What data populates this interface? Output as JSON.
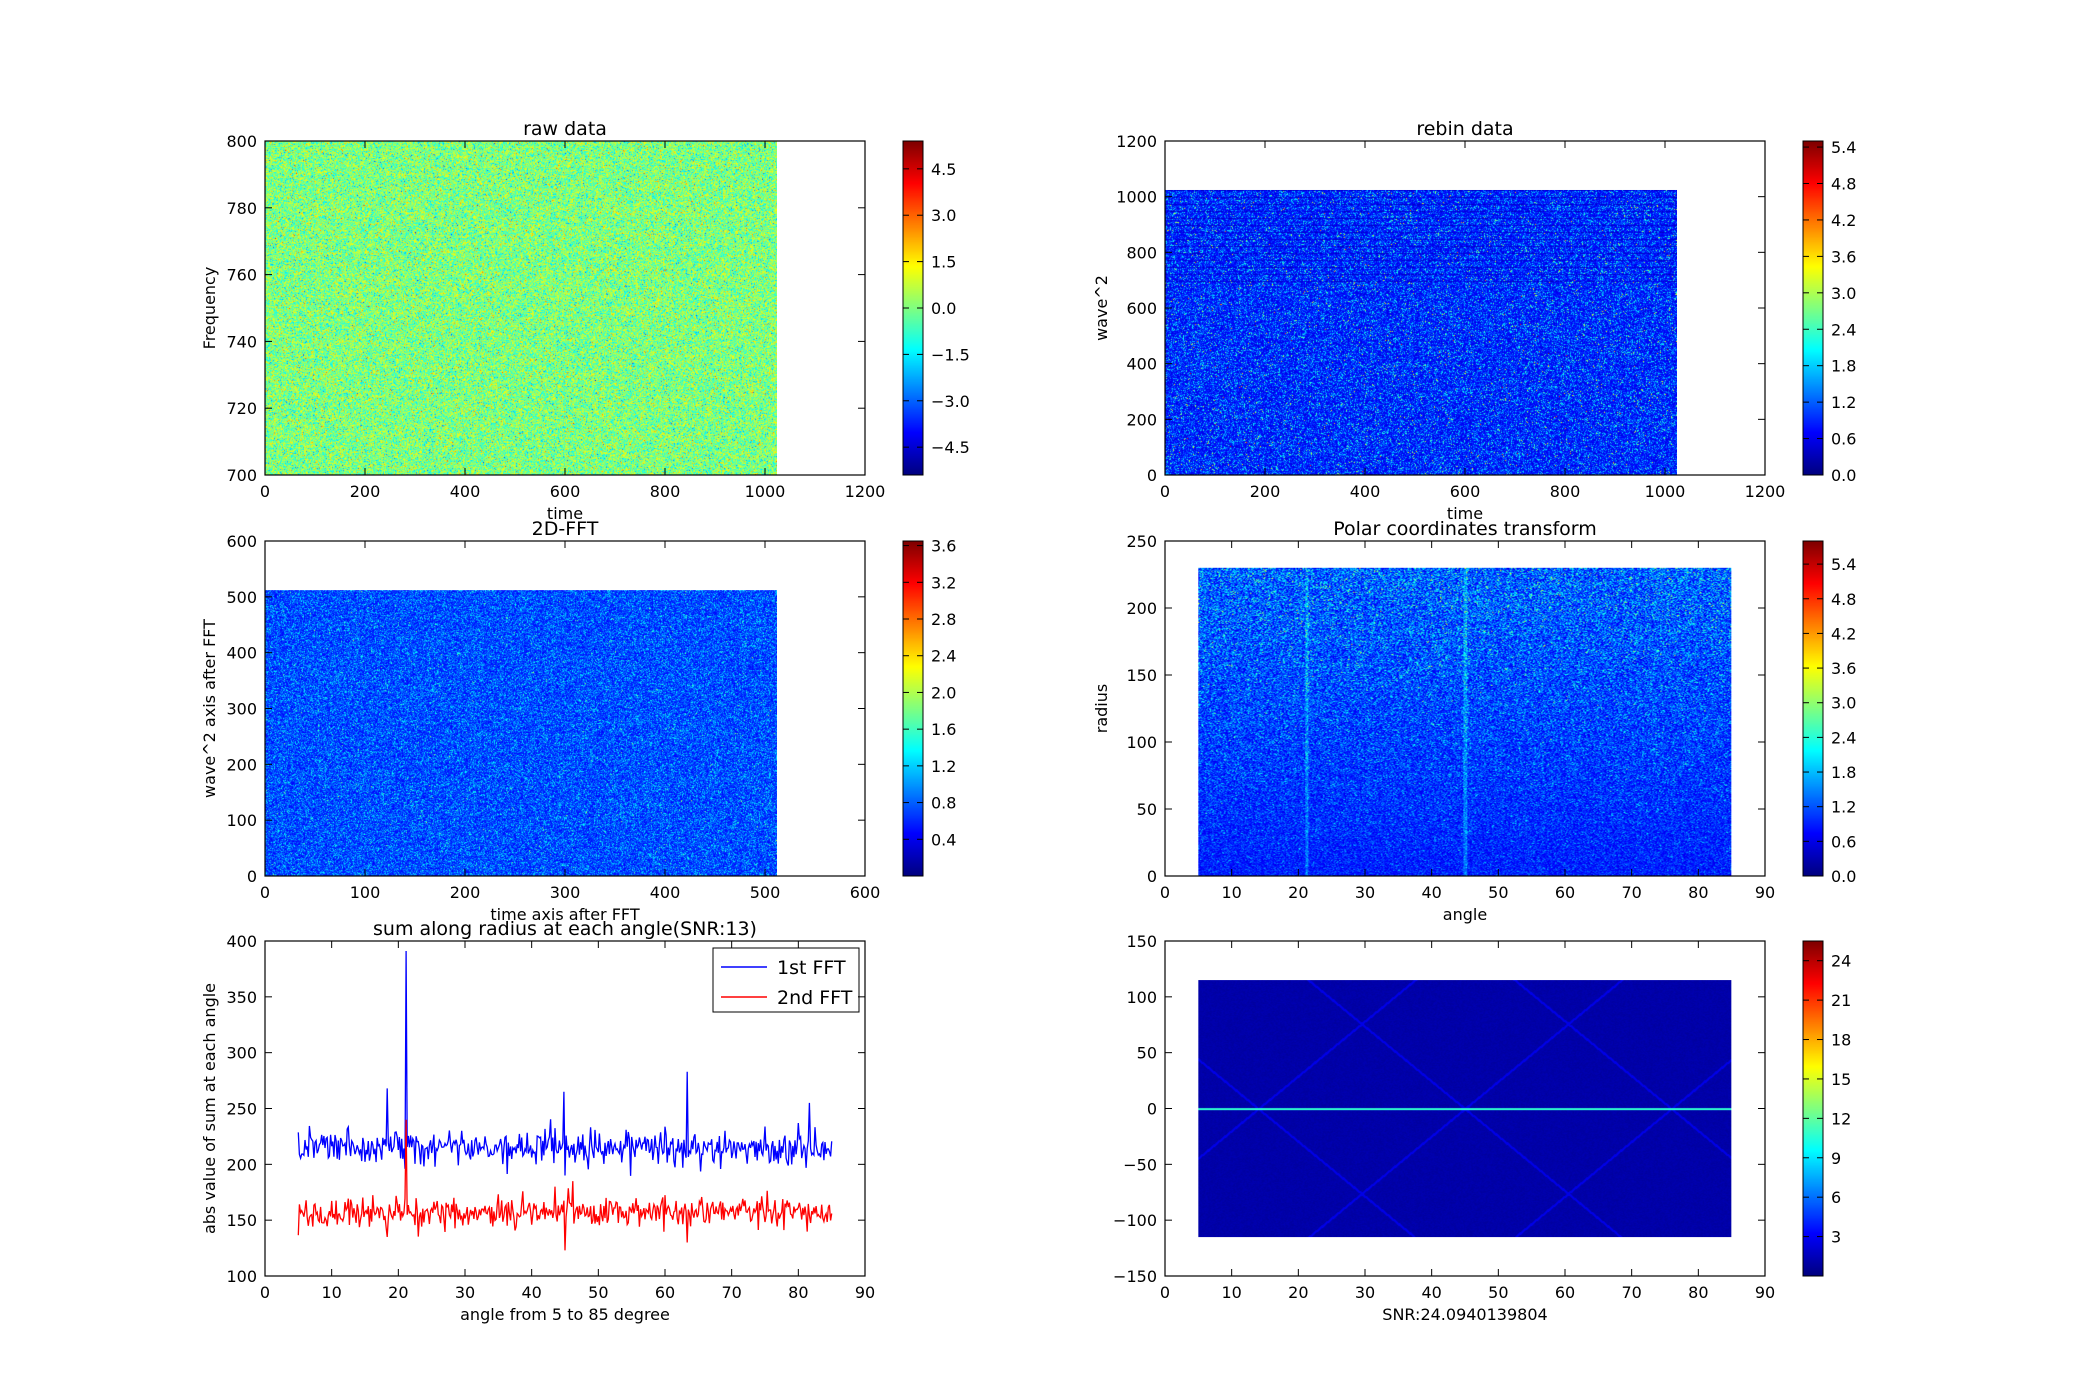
{
  "chart_data": [
    {
      "type": "heatmap",
      "title": "raw data",
      "xlabel": "time",
      "ylabel": "Frequency",
      "xlim": [
        0,
        1200
      ],
      "ylim": [
        700,
        800
      ],
      "xticks": [
        0,
        200,
        400,
        600,
        800,
        1000,
        1200
      ],
      "yticks": [
        700,
        720,
        740,
        760,
        780,
        800
      ],
      "data_extent": {
        "x": [
          0,
          1024
        ],
        "y": [
          700,
          800
        ]
      },
      "colorbar": {
        "range": [
          -5.4,
          5.4
        ],
        "ticks": [
          "−4.5",
          "−3.0",
          "−1.5",
          "0.0",
          "1.5",
          "3.0",
          "4.5"
        ],
        "tick_values": [
          -4.5,
          -3.0,
          -1.5,
          0.0,
          1.5,
          3.0,
          4.5
        ]
      },
      "colormap": "jet",
      "appearance": "noise centered near 0 (green/yellow)"
    },
    {
      "type": "heatmap",
      "title": "rebin data",
      "xlabel": "time",
      "ylabel": "wave^2",
      "xlim": [
        0,
        1200
      ],
      "ylim": [
        0,
        1200
      ],
      "xticks": [
        0,
        200,
        400,
        600,
        800,
        1000,
        1200
      ],
      "yticks": [
        0,
        200,
        400,
        600,
        800,
        1000,
        1200
      ],
      "data_extent": {
        "x": [
          0,
          1024
        ],
        "y": [
          0,
          1024
        ]
      },
      "colorbar": {
        "range": [
          0.0,
          5.5
        ],
        "ticks": [
          "0.0",
          "0.6",
          "1.2",
          "1.8",
          "2.4",
          "3.0",
          "3.6",
          "4.2",
          "4.8",
          "5.4"
        ],
        "tick_values": [
          0.0,
          0.6,
          1.2,
          1.8,
          2.4,
          3.0,
          3.6,
          4.2,
          4.8,
          5.4
        ]
      },
      "colormap": "jet",
      "appearance": "mostly blue noise"
    },
    {
      "type": "heatmap",
      "title": "2D-FFT",
      "xlabel": "time axis after FFT",
      "ylabel": "wave^2 axis after FFT",
      "xlim": [
        0,
        600
      ],
      "ylim": [
        0,
        600
      ],
      "xticks": [
        0,
        100,
        200,
        300,
        400,
        500,
        600
      ],
      "yticks": [
        0,
        100,
        200,
        300,
        400,
        500,
        600
      ],
      "data_extent": {
        "x": [
          0,
          512
        ],
        "y": [
          0,
          512
        ]
      },
      "colorbar": {
        "range": [
          0.0,
          3.65
        ],
        "ticks": [
          "0.4",
          "0.8",
          "1.2",
          "1.6",
          "2.0",
          "2.4",
          "2.8",
          "3.2",
          "3.6"
        ],
        "tick_values": [
          0.4,
          0.8,
          1.2,
          1.6,
          2.0,
          2.4,
          2.8,
          3.2,
          3.6
        ]
      },
      "colormap": "jet",
      "appearance": "blue noise"
    },
    {
      "type": "heatmap",
      "title": "Polar coordinates transform",
      "xlabel": "angle",
      "ylabel": "radius",
      "xlim": [
        0,
        90
      ],
      "ylim": [
        0,
        250
      ],
      "xticks": [
        0,
        10,
        20,
        30,
        40,
        50,
        60,
        70,
        80,
        90
      ],
      "yticks": [
        0,
        50,
        100,
        150,
        200,
        250
      ],
      "data_extent": {
        "x": [
          5,
          85
        ],
        "y": [
          0,
          230
        ]
      },
      "colorbar": {
        "range": [
          0.0,
          5.8
        ],
        "ticks": [
          "0.0",
          "0.6",
          "1.2",
          "1.8",
          "2.4",
          "3.0",
          "3.6",
          "4.2",
          "4.8",
          "5.4"
        ],
        "tick_values": [
          0.0,
          0.6,
          1.2,
          1.8,
          2.4,
          3.0,
          3.6,
          4.2,
          4.8,
          5.4
        ]
      },
      "colormap": "jet",
      "appearance": "blue noise brighter toward top, faint vertical streaks near angles 21 and 45"
    },
    {
      "type": "line",
      "title": "sum along radius at each angle(SNR:13)",
      "xlabel": "angle from 5 to 85 degree",
      "ylabel": "abs value of sum at each angle",
      "xlim": [
        0,
        90
      ],
      "ylim": [
        100,
        400
      ],
      "xticks": [
        0,
        10,
        20,
        30,
        40,
        50,
        60,
        70,
        80,
        90
      ],
      "yticks": [
        100,
        150,
        200,
        250,
        300,
        350,
        400
      ],
      "legend_position": "top-right",
      "series": [
        {
          "name": "1st FFT",
          "color": "#0000ff",
          "x_range": [
            5,
            85
          ],
          "baseline": 215,
          "noise": 8,
          "spikes": [
            {
              "x": 18.4,
              "y": 268
            },
            {
              "x": 21.2,
              "y": 391
            },
            {
              "x": 21.0,
              "y": 196
            },
            {
              "x": 44.8,
              "y": 265
            },
            {
              "x": 45.0,
              "y": 190
            },
            {
              "x": 63.4,
              "y": 283
            },
            {
              "x": 62.6,
              "y": 197
            },
            {
              "x": 81.6,
              "y": 255
            }
          ]
        },
        {
          "name": "2nd FFT",
          "color": "#ff0000",
          "x_range": [
            5,
            85
          ],
          "baseline": 157,
          "noise": 7,
          "spikes": [
            {
              "x": 21.2,
              "y": 240
            },
            {
              "x": 18.4,
              "y": 135
            },
            {
              "x": 45.0,
              "y": 123
            },
            {
              "x": 43.5,
              "y": 180
            },
            {
              "x": 46.2,
              "y": 185
            },
            {
              "x": 63.4,
              "y": 130
            }
          ]
        }
      ]
    },
    {
      "type": "heatmap",
      "title": "",
      "xlabel": "SNR:24.0940139804",
      "ylabel": "",
      "xlim": [
        0,
        90
      ],
      "ylim": [
        -150,
        150
      ],
      "xticks": [
        0,
        10,
        20,
        30,
        40,
        50,
        60,
        70,
        80,
        90
      ],
      "yticks": [
        -150,
        -100,
        -50,
        0,
        50,
        100,
        150
      ],
      "ytick_labels": [
        "−150",
        "−100",
        "−50",
        "0",
        "50",
        "100",
        "150"
      ],
      "data_extent": {
        "x": [
          5,
          85
        ],
        "y": [
          -115,
          115
        ]
      },
      "colorbar": {
        "range": [
          0.0,
          25.5
        ],
        "ticks": [
          "3",
          "6",
          "9",
          "12",
          "15",
          "18",
          "21",
          "24"
        ],
        "tick_values": [
          3,
          6,
          9,
          12,
          15,
          18,
          21,
          24
        ]
      },
      "colormap": "jet",
      "appearance": "dark blue field with bright horizontal line at 0 and faint diagonal lines crossing at angle 45"
    }
  ]
}
